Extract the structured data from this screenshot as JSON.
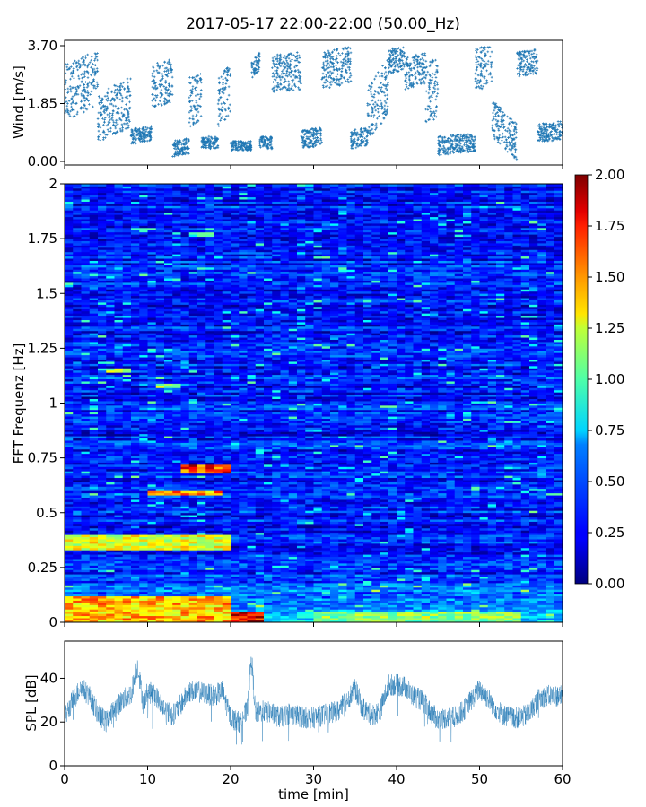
{
  "title": "2017-05-17 22:00-22:00 (50.00_Hz)",
  "chart_data": [
    {
      "type": "scatter",
      "name": "wind",
      "ylabel": "Wind [m/s]",
      "xlim": [
        0,
        60
      ],
      "ylim": [
        0,
        3.7
      ],
      "yticks": [
        0,
        1.85,
        3.7
      ],
      "ytick_labels": [
        "0.00",
        "1.85",
        "3.70"
      ],
      "marker": "+",
      "color": "#1f77b4",
      "segments": [
        {
          "x": [
            0,
            3.5
          ],
          "y": [
            2.2,
            2.6
          ],
          "spread": 0.9
        },
        {
          "x": 3.5,
          "y": 2.9,
          "spread": 0.6
        },
        {
          "x": [
            4,
            8
          ],
          "y": [
            1.4,
            1.9
          ],
          "spread": 0.8
        },
        {
          "x": [
            8,
            10.5
          ],
          "y": [
            0.8,
            0.9
          ],
          "spread": 0.25
        },
        {
          "x": [
            10.5,
            13
          ],
          "y": [
            2.4,
            2.6
          ],
          "spread": 0.7
        },
        {
          "x": [
            13,
            15
          ],
          "y": [
            0.4,
            0.5
          ],
          "spread": 0.25
        },
        {
          "x": [
            15,
            16.5
          ],
          "y": [
            1.9,
            2.1
          ],
          "spread": 0.8
        },
        {
          "x": [
            16.5,
            18.5
          ],
          "y": [
            0.6,
            0.6
          ],
          "spread": 0.2
        },
        {
          "x": [
            18.5,
            20
          ],
          "y": [
            1.9,
            2.3
          ],
          "spread": 0.8
        },
        {
          "x": [
            20,
            22.5
          ],
          "y": [
            0.5,
            0.5
          ],
          "spread": 0.15
        },
        {
          "x": [
            22.5,
            23.5
          ],
          "y": [
            2.9,
            3.2
          ],
          "spread": 0.3
        },
        {
          "x": [
            23.5,
            25
          ],
          "y": [
            0.6,
            0.6
          ],
          "spread": 0.2
        },
        {
          "x": [
            25,
            28.5
          ],
          "y": [
            2.8,
            2.9
          ],
          "spread": 0.6
        },
        {
          "x": [
            28.5,
            31
          ],
          "y": [
            0.7,
            0.8
          ],
          "spread": 0.3
        },
        {
          "x": [
            31,
            34.5
          ],
          "y": [
            2.9,
            3.1
          ],
          "spread": 0.6
        },
        {
          "x": [
            34.5,
            36.5
          ],
          "y": [
            0.7,
            0.8
          ],
          "spread": 0.3
        },
        {
          "x": [
            36.5,
            39
          ],
          "y": [
            1.5,
            2.4
          ],
          "spread": 0.9
        },
        {
          "x": [
            39,
            41
          ],
          "y": [
            3.2,
            3.3
          ],
          "spread": 0.4
        },
        {
          "x": [
            41,
            43.5
          ],
          "y": [
            2.8,
            3.0
          ],
          "spread": 0.5
        },
        {
          "x": [
            43.5,
            45
          ],
          "y": [
            2.2,
            2.4
          ],
          "spread": 1.0
        },
        {
          "x": [
            45,
            49.5
          ],
          "y": [
            0.5,
            0.6
          ],
          "spread": 0.3
        },
        {
          "x": [
            49.5,
            51.5
          ],
          "y": [
            2.9,
            3.2
          ],
          "spread": 0.7
        },
        {
          "x": [
            51.5,
            54.5
          ],
          "y": [
            1.4,
            0.6
          ],
          "spread": 0.6
        },
        {
          "x": [
            54.5,
            57
          ],
          "y": [
            3.1,
            3.2
          ],
          "spread": 0.4
        },
        {
          "x": [
            57,
            60
          ],
          "y": [
            0.9,
            1.0
          ],
          "spread": 0.3
        }
      ]
    },
    {
      "type": "heatmap",
      "name": "spectrogram",
      "ylabel": "FFT Frequenz [Hz]",
      "xlim": [
        0,
        60
      ],
      "ylim": [
        0,
        2
      ],
      "yticks": [
        0,
        0.25,
        0.5,
        0.75,
        1,
        1.25,
        1.5,
        1.75,
        2
      ],
      "ytick_labels": [
        "0",
        "0.25",
        "0.5",
        "0.75",
        "1",
        "1.25",
        "1.5",
        "1.75",
        "2"
      ],
      "colormap": "jet",
      "clim": [
        0,
        2
      ],
      "colorbar_ticks": [
        0,
        0.25,
        0.5,
        0.75,
        1.0,
        1.25,
        1.5,
        1.75,
        2.0
      ],
      "colorbar_tick_labels": [
        "0.00",
        "0.25",
        "0.50",
        "0.75",
        "1.00",
        "1.25",
        "1.50",
        "1.75",
        "2.00"
      ],
      "typical_value": 0.3,
      "hotspots": [
        {
          "x": [
            0,
            20
          ],
          "f": [
            0,
            0.12
          ],
          "value": 1.5
        },
        {
          "x": [
            20,
            24
          ],
          "f": [
            0,
            0.05
          ],
          "value": 2.0
        },
        {
          "x": [
            30,
            55
          ],
          "f": [
            0,
            0.05
          ],
          "value": 1.1
        },
        {
          "x": [
            0,
            20
          ],
          "f": [
            0.33,
            0.4
          ],
          "value": 1.3
        },
        {
          "x": [
            14,
            20
          ],
          "f": [
            0.68,
            0.72
          ],
          "value": 1.8
        },
        {
          "x": [
            10,
            19
          ],
          "f": [
            0.58,
            0.6
          ],
          "value": 1.6
        },
        {
          "x": [
            5,
            8
          ],
          "f": [
            1.14,
            1.16
          ],
          "value": 1.2
        },
        {
          "x": [
            11,
            14
          ],
          "f": [
            1.07,
            1.09
          ],
          "value": 1.2
        },
        {
          "x": [
            15,
            18
          ],
          "f": [
            1.76,
            1.78
          ],
          "value": 0.9
        }
      ]
    },
    {
      "type": "line",
      "name": "spl",
      "ylabel": "SPL [dB]",
      "xlabel": "time [min]",
      "xlim": [
        0,
        60
      ],
      "ylim": [
        0,
        57
      ],
      "yticks": [
        0,
        20,
        40
      ],
      "ytick_labels": [
        "0",
        "20",
        "40"
      ],
      "xticks": [
        0,
        10,
        20,
        30,
        40,
        50,
        60
      ],
      "xtick_labels": [
        "0",
        "10",
        "20",
        "30",
        "40",
        "50",
        "60"
      ],
      "color": "#1f77b4",
      "envelope": {
        "x": [
          0,
          1,
          2,
          3,
          4,
          5,
          6,
          7,
          8,
          8.8,
          9.5,
          10,
          11,
          12,
          13,
          14,
          15,
          16,
          17,
          18,
          19,
          20,
          21,
          22,
          22.5,
          23,
          24,
          25,
          26,
          27,
          28,
          29,
          30,
          31,
          32,
          33,
          34,
          35,
          36,
          37,
          38,
          39,
          40,
          41,
          42,
          43,
          44,
          45,
          46,
          47,
          48,
          49,
          50,
          51,
          52,
          53,
          54,
          55,
          56,
          57,
          58,
          59,
          60
        ],
        "y": [
          22,
          30,
          36,
          32,
          24,
          20,
          26,
          30,
          33,
          46,
          28,
          34,
          32,
          26,
          23,
          28,
          34,
          34,
          33,
          32,
          34,
          22,
          20,
          25,
          50,
          24,
          25,
          24,
          22,
          24,
          23,
          22,
          22,
          23,
          24,
          25,
          30,
          35,
          26,
          23,
          25,
          37,
          37,
          36,
          32,
          30,
          25,
          21,
          22,
          22,
          25,
          30,
          35,
          31,
          26,
          23,
          22,
          22,
          24,
          30,
          32,
          32,
          32
        ]
      }
    }
  ]
}
